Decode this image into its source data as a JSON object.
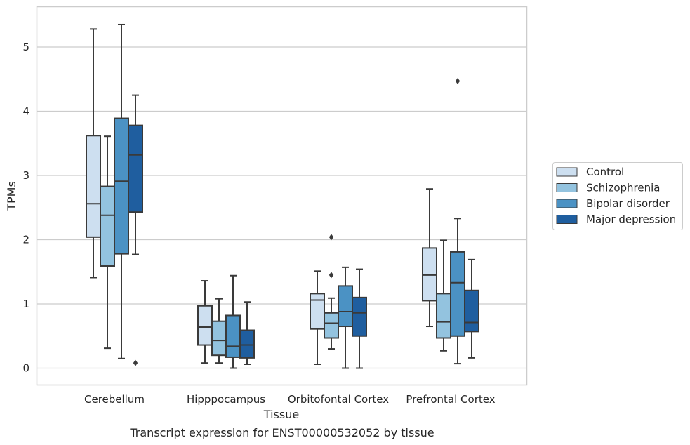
{
  "chart_data": {
    "type": "box",
    "xlabel": "Tissue",
    "ylabel": "TPMs",
    "caption": "Transcript expression for ENST00000532052 by tissue",
    "ylim": [
      -0.25,
      5.65
    ],
    "yticks": [
      0,
      1,
      2,
      3,
      4,
      5
    ],
    "grid": "horizontal",
    "legend_position": "right",
    "categories": [
      "Cerebellum",
      "Hipppocampus",
      "Orbitofontal Cortex",
      "Prefrontal Cortex"
    ],
    "series": [
      {
        "name": "Control",
        "color": "#cddff0",
        "boxes": [
          {
            "whisker_low": 1.41,
            "q1": 2.04,
            "median": 2.56,
            "q3": 3.62,
            "whisker_high": 5.28,
            "outliers": []
          },
          {
            "whisker_low": 0.08,
            "q1": 0.36,
            "median": 0.64,
            "q3": 0.97,
            "whisker_high": 1.36,
            "outliers": []
          },
          {
            "whisker_low": 0.06,
            "q1": 0.61,
            "median": 1.06,
            "q3": 1.16,
            "whisker_high": 1.51,
            "outliers": []
          },
          {
            "whisker_low": 0.65,
            "q1": 1.05,
            "median": 1.45,
            "q3": 1.87,
            "whisker_high": 2.79,
            "outliers": []
          }
        ]
      },
      {
        "name": "Schizophrenia",
        "color": "#93c3df",
        "boxes": [
          {
            "whisker_low": 0.31,
            "q1": 1.59,
            "median": 2.38,
            "q3": 2.83,
            "whisker_high": 3.61,
            "outliers": []
          },
          {
            "whisker_low": 0.08,
            "q1": 0.2,
            "median": 0.43,
            "q3": 0.73,
            "whisker_high": 1.08,
            "outliers": []
          },
          {
            "whisker_low": 0.3,
            "q1": 0.47,
            "median": 0.7,
            "q3": 0.86,
            "whisker_high": 1.09,
            "outliers": [
              1.45,
              2.04
            ]
          },
          {
            "whisker_low": 0.27,
            "q1": 0.47,
            "median": 0.72,
            "q3": 1.16,
            "whisker_high": 1.99,
            "outliers": []
          }
        ]
      },
      {
        "name": "Bipolar disorder",
        "color": "#4b92c4",
        "boxes": [
          {
            "whisker_low": 0.15,
            "q1": 1.78,
            "median": 2.91,
            "q3": 3.89,
            "whisker_high": 5.35,
            "outliers": []
          },
          {
            "whisker_low": 0.0,
            "q1": 0.17,
            "median": 0.34,
            "q3": 0.82,
            "whisker_high": 1.44,
            "outliers": []
          },
          {
            "whisker_low": 0.0,
            "q1": 0.65,
            "median": 0.88,
            "q3": 1.28,
            "whisker_high": 1.57,
            "outliers": []
          },
          {
            "whisker_low": 0.07,
            "q1": 0.5,
            "median": 1.33,
            "q3": 1.81,
            "whisker_high": 2.33,
            "outliers": [
              4.47
            ]
          }
        ]
      },
      {
        "name": "Major depression",
        "color": "#1f5e9f",
        "boxes": [
          {
            "whisker_low": 1.77,
            "q1": 2.43,
            "median": 3.32,
            "q3": 3.78,
            "whisker_high": 4.25,
            "outliers": [
              0.08
            ]
          },
          {
            "whisker_low": 0.06,
            "q1": 0.16,
            "median": 0.36,
            "q3": 0.59,
            "whisker_high": 1.03,
            "outliers": []
          },
          {
            "whisker_low": 0.0,
            "q1": 0.5,
            "median": 0.86,
            "q3": 1.1,
            "whisker_high": 1.54,
            "outliers": []
          },
          {
            "whisker_low": 0.16,
            "q1": 0.57,
            "median": 0.71,
            "q3": 1.21,
            "whisker_high": 1.69,
            "outliers": []
          }
        ]
      }
    ]
  }
}
